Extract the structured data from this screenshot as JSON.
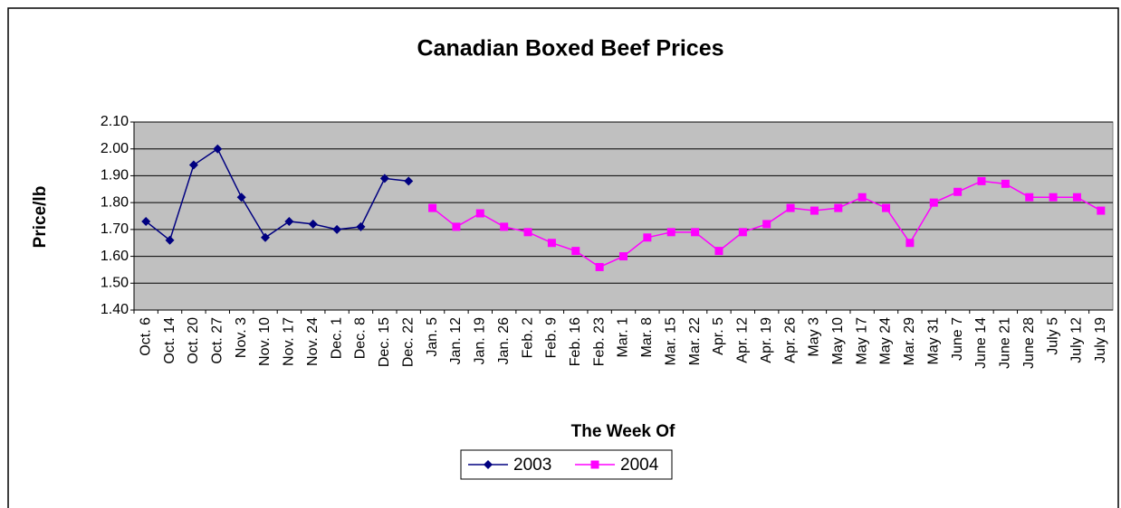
{
  "chart_data": {
    "type": "line",
    "title": "Canadian Boxed Beef Prices",
    "x_label": "The Week Of",
    "y_label": "Price/lb",
    "categories": [
      "Oct. 6",
      "Oct. 14",
      "Oct. 20",
      "Oct. 27",
      "Nov. 3",
      "Nov. 10",
      "Nov. 17",
      "Nov. 24",
      "Dec. 1",
      "Dec. 8",
      "Dec. 15",
      "Dec. 22",
      "Jan. 5",
      "Jan. 12",
      "Jan. 19",
      "Jan. 26",
      "Feb. 2",
      "Feb. 9",
      "Feb. 16",
      "Feb. 23",
      "Mar. 1",
      "Mar. 8",
      "Mar. 15",
      "Mar. 22",
      "Apr. 5",
      "Apr. 12",
      "Apr. 19",
      "Apr. 26",
      "May 3",
      "May 10",
      "May 17",
      "May 24",
      "Mar. 29",
      "May 31",
      "June 7",
      "June 14",
      "June 21",
      "June 28",
      "July 5",
      "July 12",
      "July 19"
    ],
    "series": [
      {
        "name": "2003",
        "color": "#000080",
        "marker": "diamond",
        "values": [
          1.73,
          1.66,
          1.94,
          2.0,
          1.82,
          1.67,
          1.73,
          1.72,
          1.7,
          1.71,
          1.89,
          1.88,
          null,
          null,
          null,
          null,
          null,
          null,
          null,
          null,
          null,
          null,
          null,
          null,
          null,
          null,
          null,
          null,
          null,
          null,
          null,
          null,
          null,
          null,
          null,
          null,
          null,
          null,
          null,
          null,
          null
        ]
      },
      {
        "name": "2004",
        "color": "#ff00ff",
        "marker": "square",
        "values": [
          null,
          null,
          null,
          null,
          null,
          null,
          null,
          null,
          null,
          null,
          null,
          null,
          1.78,
          1.71,
          1.76,
          1.71,
          1.69,
          1.65,
          1.62,
          1.56,
          1.6,
          1.67,
          1.69,
          1.69,
          1.62,
          1.69,
          1.72,
          1.78,
          1.77,
          1.78,
          1.82,
          1.78,
          1.65,
          1.8,
          1.84,
          1.88,
          1.87,
          1.82,
          1.82,
          1.82,
          1.77
        ]
      }
    ],
    "ylim": [
      1.4,
      2.1
    ],
    "yticks": [
      {
        "value": 1.4,
        "label": "1.40"
      },
      {
        "value": 1.5,
        "label": "1.50"
      },
      {
        "value": 1.6,
        "label": "1.60"
      },
      {
        "value": 1.7,
        "label": "1.70"
      },
      {
        "value": 1.8,
        "label": "1.80"
      },
      {
        "value": 1.9,
        "label": "1.90"
      },
      {
        "value": 2.0,
        "label": "2.00"
      },
      {
        "value": 2.1,
        "label": "2.10"
      }
    ],
    "grid": true,
    "plot_background": "#c0c0c0",
    "legend": "bottom"
  }
}
